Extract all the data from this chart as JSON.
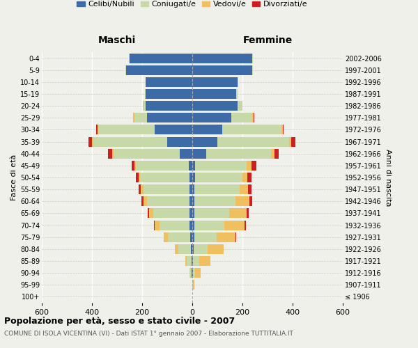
{
  "age_groups": [
    "100+",
    "95-99",
    "90-94",
    "85-89",
    "80-84",
    "75-79",
    "70-74",
    "65-69",
    "60-64",
    "55-59",
    "50-54",
    "45-49",
    "40-44",
    "35-39",
    "30-34",
    "25-29",
    "20-24",
    "15-19",
    "10-14",
    "5-9",
    "0-4"
  ],
  "birth_years": [
    "≤ 1906",
    "1907-1911",
    "1912-1916",
    "1917-1921",
    "1922-1926",
    "1927-1931",
    "1932-1936",
    "1937-1941",
    "1942-1946",
    "1947-1951",
    "1952-1956",
    "1957-1961",
    "1962-1966",
    "1967-1971",
    "1972-1976",
    "1977-1981",
    "1982-1986",
    "1987-1991",
    "1992-1996",
    "1997-2001",
    "2002-2006"
  ],
  "colors": {
    "celibi": "#3d6ba8",
    "coniugati": "#c8d9a8",
    "vedovi": "#f0c060",
    "divorziati": "#cc2020"
  },
  "maschi": {
    "celibi": [
      1,
      1,
      2,
      3,
      5,
      8,
      10,
      10,
      10,
      10,
      12,
      15,
      50,
      100,
      150,
      180,
      185,
      185,
      185,
      265,
      250
    ],
    "coniugati": [
      0,
      0,
      8,
      20,
      50,
      90,
      120,
      145,
      170,
      185,
      195,
      210,
      265,
      295,
      225,
      50,
      10,
      3,
      2,
      3,
      2
    ],
    "vedovi": [
      0,
      0,
      2,
      5,
      15,
      15,
      20,
      18,
      15,
      10,
      8,
      5,
      5,
      5,
      3,
      5,
      2,
      1,
      0,
      0,
      0
    ],
    "divorziati": [
      0,
      0,
      0,
      0,
      0,
      2,
      2,
      5,
      8,
      10,
      10,
      12,
      15,
      15,
      5,
      2,
      1,
      0,
      0,
      0,
      0
    ]
  },
  "femmine": {
    "celibi": [
      1,
      1,
      2,
      3,
      5,
      8,
      8,
      8,
      8,
      8,
      10,
      12,
      55,
      100,
      120,
      155,
      180,
      175,
      180,
      240,
      240
    ],
    "coniugati": [
      0,
      2,
      10,
      25,
      55,
      90,
      120,
      140,
      165,
      180,
      190,
      205,
      260,
      285,
      235,
      85,
      18,
      5,
      2,
      2,
      2
    ],
    "vedovi": [
      0,
      5,
      20,
      45,
      65,
      75,
      80,
      70,
      55,
      35,
      20,
      18,
      12,
      10,
      5,
      5,
      2,
      1,
      0,
      0,
      0
    ],
    "divorziati": [
      0,
      0,
      0,
      0,
      0,
      2,
      5,
      8,
      12,
      12,
      15,
      20,
      18,
      15,
      5,
      3,
      1,
      0,
      0,
      0,
      0
    ]
  },
  "title": "Popolazione per età, sesso e stato civile - 2007",
  "subtitle": "COMUNE DI ISOLA VICENTINA (VI) - Dati ISTAT 1° gennaio 2007 - Elaborazione TUTTITALIA.IT",
  "xlabel_left": "Maschi",
  "xlabel_right": "Femmine",
  "ylabel_left": "Fasce di età",
  "ylabel_right": "Anni di nascita",
  "xlim": 600,
  "legend_labels": [
    "Celibi/Nubili",
    "Coniugati/e",
    "Vedovi/e",
    "Divorziati/e"
  ],
  "bg_color": "#f0f0eb"
}
